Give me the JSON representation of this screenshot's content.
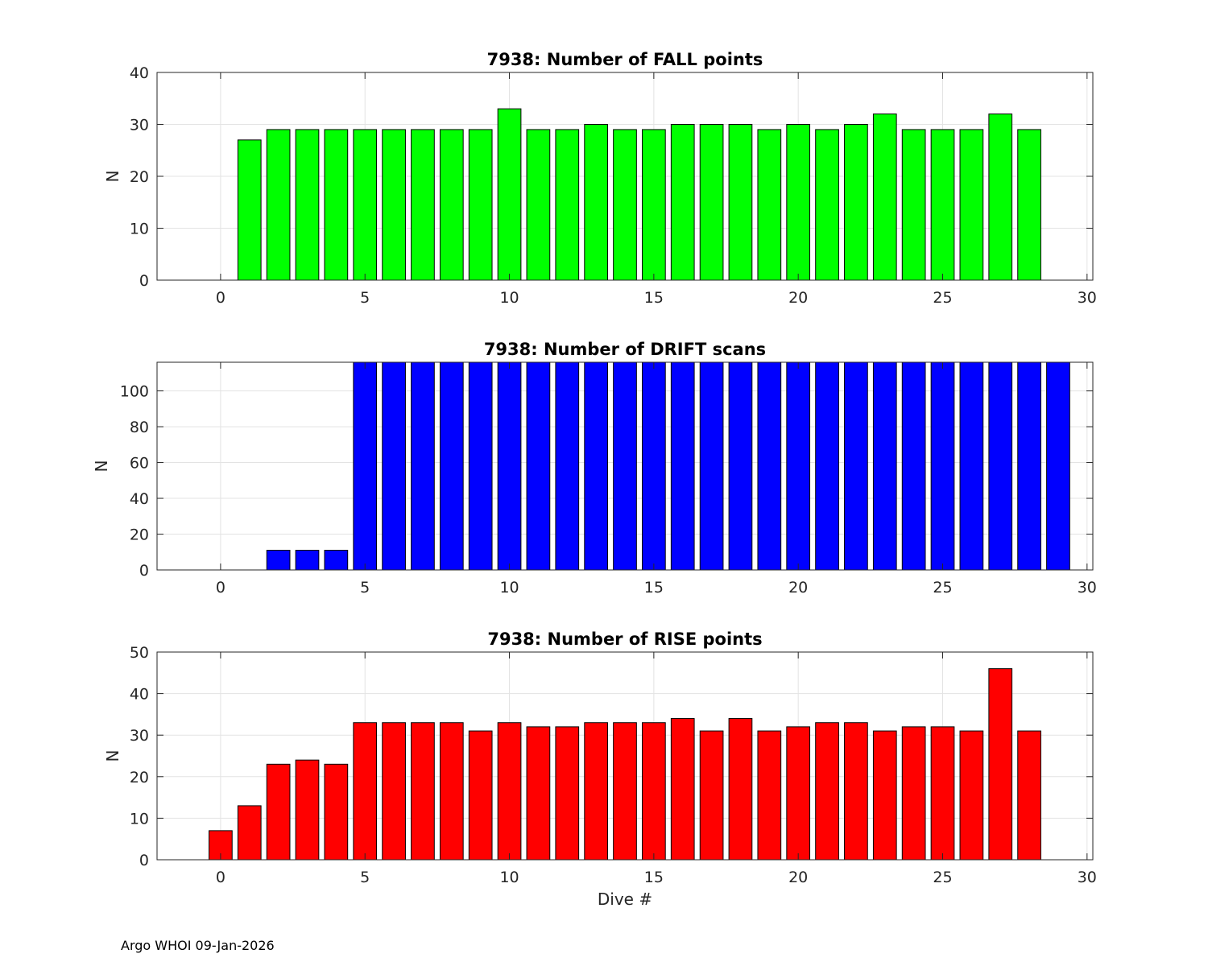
{
  "footer": "Argo WHOI 09-Jan-2026",
  "chart_data": [
    {
      "type": "bar",
      "title": "7938: Number of FALL points",
      "xlabel": "",
      "ylabel": "N",
      "xlim": [
        -2.2,
        30.2
      ],
      "ylim": [
        0,
        40
      ],
      "xticks": [
        0,
        5,
        10,
        15,
        20,
        25,
        30
      ],
      "yticks": [
        0,
        10,
        20,
        30,
        40
      ],
      "grid": true,
      "color": "#00ff00",
      "x": [
        1,
        2,
        3,
        4,
        5,
        6,
        7,
        8,
        9,
        10,
        11,
        12,
        13,
        14,
        15,
        16,
        17,
        18,
        19,
        20,
        21,
        22,
        23,
        24,
        25,
        26,
        27,
        28
      ],
      "values": [
        27,
        29,
        29,
        29,
        29,
        29,
        29,
        29,
        29,
        33,
        29,
        29,
        30,
        29,
        29,
        30,
        30,
        30,
        29,
        30,
        29,
        30,
        32,
        29,
        29,
        29,
        32,
        29
      ]
    },
    {
      "type": "bar",
      "title": "7938: Number of DRIFT scans",
      "xlabel": "",
      "ylabel": "N",
      "xlim": [
        -2.2,
        30.2
      ],
      "ylim": [
        0,
        116
      ],
      "xticks": [
        0,
        5,
        10,
        15,
        20,
        25,
        30
      ],
      "yticks": [
        0,
        20,
        40,
        60,
        80,
        100
      ],
      "grid": true,
      "color": "#0000ff",
      "x": [
        -1,
        0,
        1,
        2,
        3,
        4,
        5,
        6,
        7,
        8,
        9,
        10,
        11,
        12,
        13,
        14,
        15,
        16,
        17,
        18,
        19,
        20,
        21,
        22,
        23,
        24,
        25,
        26,
        27,
        28,
        29
      ],
      "values": [
        0,
        0,
        0,
        11,
        11,
        11,
        120,
        120,
        120,
        120,
        120,
        120,
        120,
        120,
        120,
        120,
        120,
        120,
        120,
        120,
        120,
        120,
        120,
        120,
        120,
        120,
        120,
        120,
        120,
        120,
        120
      ]
    },
    {
      "type": "bar",
      "title": "7938: Number of RISE points",
      "xlabel": "Dive #",
      "ylabel": "N",
      "xlim": [
        -2.2,
        30.2
      ],
      "ylim": [
        0,
        50
      ],
      "xticks": [
        0,
        5,
        10,
        15,
        20,
        25,
        30
      ],
      "yticks": [
        0,
        10,
        20,
        30,
        40,
        50
      ],
      "grid": true,
      "color": "#ff0000",
      "x": [
        0,
        1,
        2,
        3,
        4,
        5,
        6,
        7,
        8,
        9,
        10,
        11,
        12,
        13,
        14,
        15,
        16,
        17,
        18,
        19,
        20,
        21,
        22,
        23,
        24,
        25,
        26,
        27,
        28
      ],
      "values": [
        7,
        13,
        23,
        24,
        23,
        33,
        33,
        33,
        33,
        31,
        33,
        32,
        32,
        33,
        33,
        33,
        34,
        31,
        34,
        31,
        32,
        33,
        33,
        31,
        32,
        32,
        31,
        46,
        31
      ]
    }
  ]
}
